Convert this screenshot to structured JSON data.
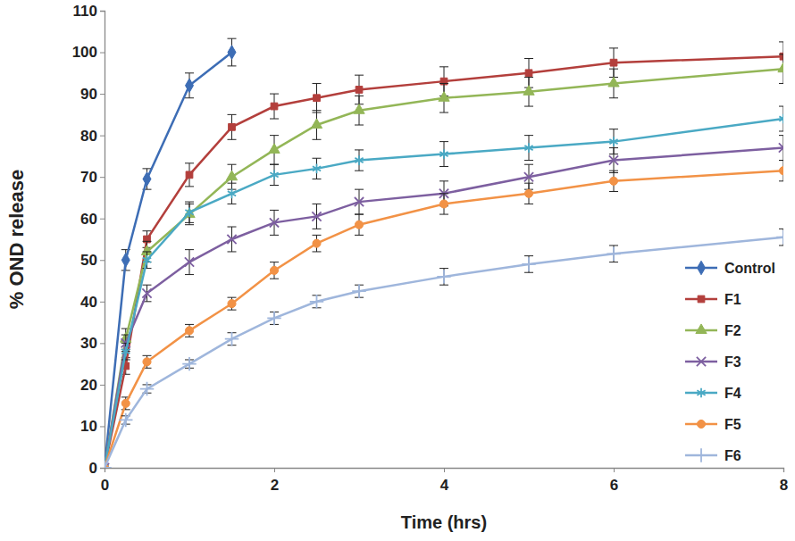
{
  "chart_data": {
    "type": "line",
    "x_label": "Time (hrs)",
    "y_label": "% OND release",
    "x": [
      0,
      0.25,
      0.5,
      1,
      1.5,
      2,
      2.5,
      3,
      4,
      5,
      6,
      8
    ],
    "xlim": [
      0,
      8
    ],
    "xticks": [
      0,
      2,
      4,
      6,
      8
    ],
    "ylim": [
      0,
      110
    ],
    "yticks": [
      0,
      10,
      20,
      30,
      40,
      50,
      60,
      70,
      80,
      90,
      100,
      110
    ],
    "grid": false,
    "legend": "lower right",
    "series": [
      {
        "name": "Control",
        "color": "#3d6db5",
        "marker": "diamond",
        "values": [
          0,
          50,
          69.5,
          92,
          100,
          null,
          null,
          null,
          null,
          null,
          null,
          null
        ],
        "errors": [
          0,
          2.5,
          2.5,
          3,
          3.3,
          null,
          null,
          null,
          null,
          null,
          null,
          null
        ]
      },
      {
        "name": "F1",
        "color": "#b33f3c",
        "marker": "square",
        "values": [
          0,
          24.5,
          55,
          70.5,
          82,
          87,
          89,
          91,
          93,
          95,
          97.5,
          99
        ],
        "errors": [
          0,
          2,
          2,
          2.8,
          3,
          3,
          3.5,
          3.5,
          3.5,
          3.5,
          3.5,
          3.5
        ]
      },
      {
        "name": "F2",
        "color": "#93b657",
        "marker": "triangle",
        "values": [
          0,
          31,
          52,
          61,
          70,
          76.5,
          82.5,
          86,
          89,
          90.5,
          92.5,
          96
        ],
        "errors": [
          0,
          2.5,
          2.5,
          2.5,
          3,
          3.5,
          3.5,
          3.5,
          3.5,
          3.5,
          3.5,
          3.5
        ]
      },
      {
        "name": "F3",
        "color": "#7d5fa0",
        "marker": "x",
        "values": [
          0,
          30,
          42,
          49.5,
          55,
          59,
          60.5,
          64,
          66,
          70,
          74,
          77
        ],
        "errors": [
          0,
          2,
          2,
          3,
          3,
          3,
          3,
          3,
          3,
          3,
          3,
          3
        ]
      },
      {
        "name": "F4",
        "color": "#4aa9c4",
        "marker": "asterisk",
        "values": [
          0,
          28,
          50,
          61.5,
          66,
          70.5,
          72,
          74,
          75.5,
          77,
          78.5,
          84
        ],
        "errors": [
          0,
          2,
          2,
          2.5,
          2.5,
          2.5,
          2.5,
          2.5,
          3,
          3,
          3,
          3
        ]
      },
      {
        "name": "F5",
        "color": "#f29246",
        "marker": "circle",
        "values": [
          0,
          15.5,
          25.5,
          33,
          39.5,
          47.5,
          54,
          58.5,
          63.5,
          66,
          69,
          71.5
        ],
        "errors": [
          0,
          1.5,
          1.5,
          1.5,
          1.5,
          2,
          2,
          2.5,
          2.5,
          2.5,
          2.5,
          2.5
        ]
      },
      {
        "name": "F6",
        "color": "#9fb6dc",
        "marker": "plus",
        "values": [
          0,
          11.5,
          19,
          25,
          31,
          36,
          40,
          42.5,
          46,
          49,
          51.5,
          55.5
        ],
        "errors": [
          0,
          1,
          1,
          1,
          1.5,
          1.5,
          1.5,
          1.5,
          2,
          2,
          2,
          2
        ]
      }
    ]
  }
}
